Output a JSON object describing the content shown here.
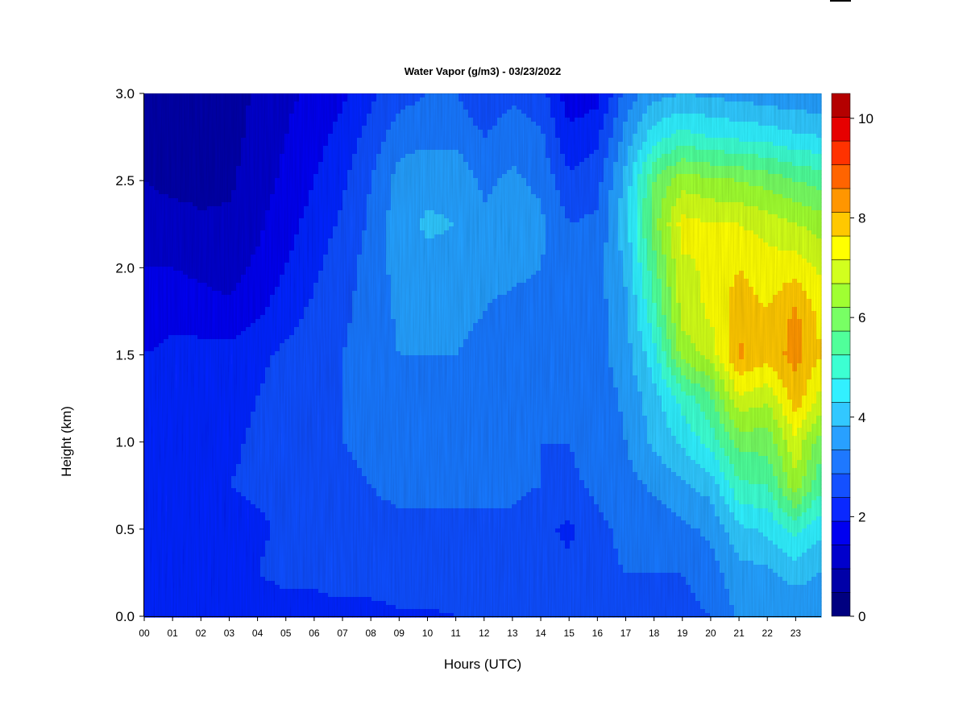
{
  "chart_data": {
    "type": "heatmap",
    "title": "Water Vapor (g/m3) - 03/23/2022",
    "xlabel": "Hours (UTC)",
    "ylabel": "Height (km)",
    "x_ticks": [
      "00",
      "01",
      "02",
      "03",
      "04",
      "05",
      "06",
      "07",
      "08",
      "09",
      "10",
      "11",
      "12",
      "13",
      "14",
      "15",
      "16",
      "17",
      "18",
      "19",
      "20",
      "21",
      "22",
      "23"
    ],
    "y_ticks": [
      "0.0",
      "0.5",
      "1.0",
      "1.5",
      "2.0",
      "2.5",
      "3.0"
    ],
    "xlim": [
      0,
      23.9
    ],
    "ylim": [
      0,
      3.0
    ],
    "colorbar": {
      "range": [
        0,
        10.5
      ],
      "step": 0.5,
      "tick_labels": [
        "0",
        "2",
        "4",
        "6",
        "8",
        "10"
      ],
      "colors": [
        "#000080",
        "#0000a8",
        "#0000cc",
        "#0000f0",
        "#0a28ff",
        "#1450ff",
        "#1e78ff",
        "#28a0ff",
        "#32c8ff",
        "#32f0ff",
        "#3cffd2",
        "#50ff9a",
        "#78ff64",
        "#a0ff32",
        "#d2ff1e",
        "#ffff00",
        "#ffc800",
        "#ff9600",
        "#ff6400",
        "#ff3200",
        "#e60000",
        "#b40000"
      ]
    },
    "z_grid": {
      "x_hours": [
        0,
        1,
        2,
        3,
        4,
        5,
        6,
        7,
        8,
        9,
        10,
        11,
        12,
        13,
        14,
        15,
        16,
        17,
        18,
        19,
        20,
        21,
        22,
        23,
        23.9
      ],
      "heights_km": [
        0,
        0.25,
        0.5,
        0.75,
        1,
        1.25,
        1.5,
        1.75,
        2,
        2.25,
        2.5,
        2.75,
        3
      ],
      "values": [
        [
          2.0,
          2.0,
          2.0,
          2.0,
          2.0,
          2.2,
          2.2,
          2.3,
          2.3,
          2.4,
          2.4,
          2.5,
          2.8,
          2.8,
          2.6,
          2.6,
          2.6,
          2.7,
          2.7,
          2.8,
          3.0,
          3.6,
          3.7,
          3.6,
          3.6
        ],
        [
          2.3,
          2.4,
          2.3,
          2.3,
          2.5,
          2.7,
          2.7,
          2.8,
          2.8,
          2.9,
          2.9,
          2.9,
          3.0,
          3.0,
          2.7,
          2.6,
          2.9,
          3.0,
          3.0,
          3.0,
          3.3,
          3.8,
          3.9,
          4.2,
          4.0
        ],
        [
          2.2,
          2.3,
          2.3,
          2.3,
          2.4,
          2.6,
          2.7,
          2.8,
          2.9,
          2.9,
          2.9,
          2.9,
          2.9,
          2.9,
          2.6,
          2.4,
          2.9,
          3.1,
          3.2,
          3.4,
          3.6,
          4.4,
          4.6,
          5.2,
          4.6
        ],
        [
          2.3,
          2.5,
          2.5,
          2.5,
          2.6,
          2.7,
          2.8,
          2.9,
          3.0,
          3.1,
          3.1,
          3.1,
          3.1,
          3.1,
          3.0,
          2.9,
          3.1,
          3.3,
          3.6,
          3.9,
          4.2,
          5.4,
          5.5,
          6.8,
          5.6
        ],
        [
          2.2,
          2.4,
          2.4,
          2.4,
          2.6,
          2.8,
          2.9,
          3.0,
          3.1,
          3.3,
          3.3,
          3.3,
          3.2,
          3.1,
          3.0,
          3.0,
          3.2,
          3.5,
          4.1,
          4.6,
          5.2,
          6.2,
          6.2,
          7.4,
          6.2
        ],
        [
          2.2,
          2.4,
          2.3,
          2.3,
          2.5,
          2.7,
          2.8,
          3.0,
          3.1,
          3.4,
          3.4,
          3.4,
          3.3,
          3.2,
          3.1,
          3.0,
          3.2,
          3.6,
          4.3,
          5.2,
          5.9,
          7.4,
          7.1,
          8.3,
          7.3
        ],
        [
          2.0,
          2.2,
          2.2,
          2.2,
          2.4,
          2.6,
          2.7,
          3.0,
          3.2,
          3.5,
          3.5,
          3.5,
          3.4,
          3.3,
          3.2,
          3.1,
          3.3,
          3.8,
          4.8,
          6.7,
          7.2,
          8.6,
          8.2,
          8.7,
          8.0
        ],
        [
          1.6,
          1.8,
          1.7,
          1.6,
          1.9,
          2.3,
          2.6,
          2.9,
          3.2,
          3.6,
          3.6,
          3.6,
          3.5,
          3.4,
          3.3,
          3.1,
          3.3,
          3.9,
          5.4,
          7.2,
          7.6,
          8.3,
          8.0,
          8.6,
          7.8
        ],
        [
          1.5,
          1.5,
          1.4,
          1.3,
          1.6,
          2.0,
          2.4,
          2.8,
          3.2,
          3.7,
          3.8,
          3.8,
          3.6,
          3.6,
          3.5,
          3.2,
          3.3,
          4.1,
          5.8,
          7.4,
          7.6,
          8.0,
          7.7,
          7.8,
          7.4
        ],
        [
          1.3,
          1.3,
          1.1,
          1.1,
          1.4,
          1.8,
          2.2,
          2.6,
          3.1,
          3.8,
          4.1,
          4.0,
          3.6,
          3.7,
          3.6,
          3.0,
          3.1,
          4.3,
          6.3,
          7.7,
          7.5,
          7.5,
          7.3,
          7.0,
          6.8
        ],
        [
          1.0,
          0.8,
          0.8,
          0.9,
          1.3,
          1.6,
          2.0,
          2.4,
          3.0,
          3.7,
          3.8,
          3.8,
          3.4,
          3.6,
          3.4,
          2.6,
          2.8,
          4.2,
          6.0,
          6.8,
          6.6,
          6.5,
          6.3,
          6.0,
          5.8
        ],
        [
          0.6,
          0.6,
          0.7,
          0.8,
          1.2,
          1.5,
          1.8,
          2.2,
          2.7,
          3.3,
          3.4,
          3.4,
          3.0,
          3.3,
          3.1,
          2.1,
          2.4,
          3.7,
          4.8,
          5.2,
          5.0,
          4.9,
          4.8,
          4.6,
          4.5
        ],
        [
          0.5,
          0.5,
          0.5,
          0.7,
          1.1,
          1.4,
          1.6,
          1.9,
          2.4,
          2.8,
          3.0,
          3.0,
          2.6,
          2.9,
          2.7,
          1.7,
          1.8,
          3.2,
          3.8,
          4.0,
          3.9,
          3.8,
          3.7,
          3.6,
          3.6
        ]
      ]
    }
  }
}
